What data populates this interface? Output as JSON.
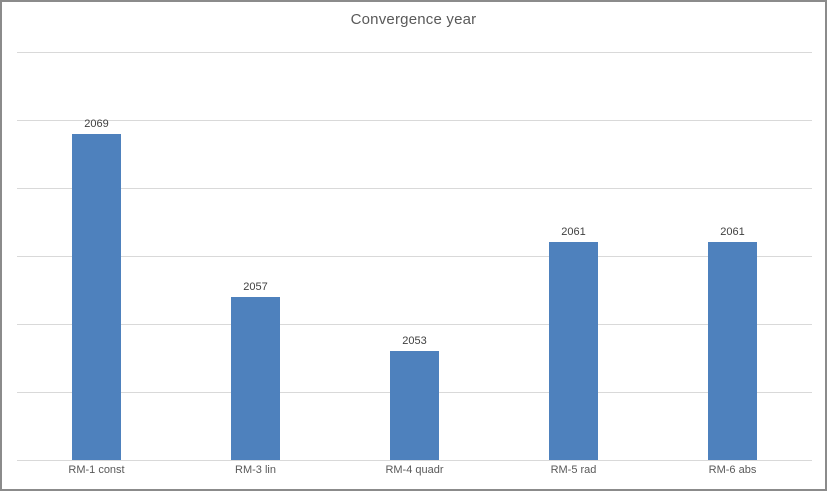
{
  "window": {
    "background_color": "#ffffff",
    "border_color": "#8b8b8b"
  },
  "chart_data": {
    "type": "bar",
    "title": "Convergence year",
    "categories": [
      "RM-1 const",
      "RM-3 lin",
      "RM-4 quadr",
      "RM-5 rad",
      "RM-6 abs"
    ],
    "values": [
      2069,
      2057,
      2053,
      2061,
      2061
    ],
    "data_labels": [
      "2069",
      "2057",
      "2053",
      "2061",
      "2061"
    ],
    "xlabel": "",
    "ylabel": "",
    "ylim": [
      2045,
      2075
    ],
    "gridline_step": 5,
    "grid": true,
    "y_axis_tick_labels_visible": false,
    "legend_position": "none",
    "bar_color": "#4e81bd",
    "gridline_color": "#d9d9d9",
    "title_color": "#595959",
    "data_label_color": "#404040",
    "category_label_color": "#595959"
  }
}
